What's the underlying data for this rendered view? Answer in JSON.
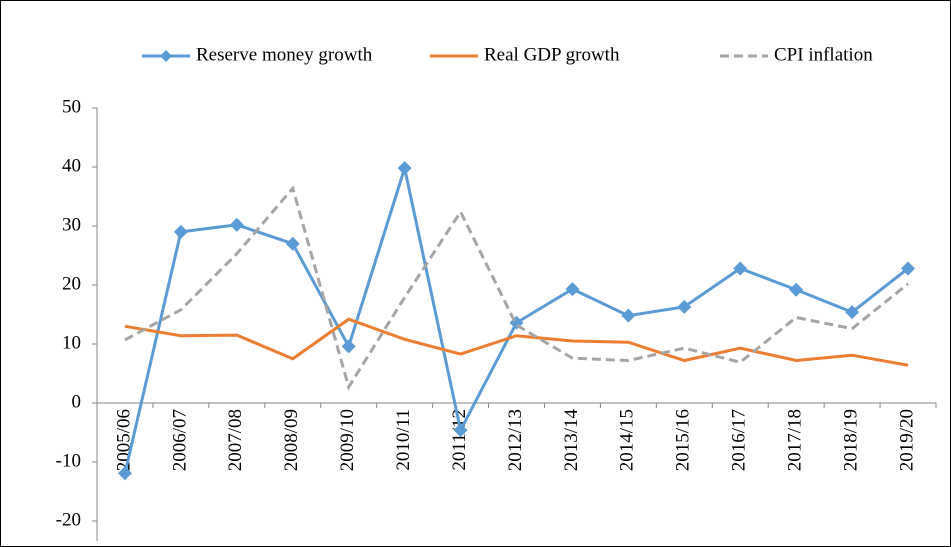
{
  "chart_data": {
    "type": "line",
    "categories": [
      "2005/06",
      "2006/07",
      "2007/08",
      "2008/09",
      "2009/10",
      "2010/11",
      "2011/12",
      "2012/13",
      "2013/14",
      "2014/15",
      "2015/16",
      "2016/17",
      "2017/18",
      "2018/19",
      "2019/20"
    ],
    "series": [
      {
        "name": "Reserve money growth",
        "color": "#5b9bd5",
        "marker": "diamond",
        "dash": false,
        "values": [
          -11.9,
          29,
          30.2,
          27,
          9.6,
          39.8,
          -4.6,
          13.6,
          19.3,
          14.8,
          16.3,
          22.8,
          19.2,
          15.4,
          22.8
        ]
      },
      {
        "name": "Real GDP growth",
        "color": "#ed7d31",
        "marker": "none",
        "dash": false,
        "values": [
          13,
          11.4,
          11.5,
          7.5,
          14.2,
          10.8,
          8.3,
          11.4,
          10.5,
          10.3,
          7.2,
          9.3,
          7.2,
          8.1,
          6.4
        ]
      },
      {
        "name": "CPI inflation",
        "color": "#a5a5a5",
        "marker": "none",
        "dash": true,
        "values": [
          10.7,
          15.8,
          25.3,
          36.4,
          2.7,
          17.9,
          32.4,
          13.2,
          7.6,
          7.2,
          9.3,
          6.9,
          14.5,
          12.6,
          20.2
        ]
      }
    ],
    "ylim": [
      -20,
      50
    ],
    "yticks": [
      -20,
      -10,
      0,
      10,
      20,
      30,
      40,
      50
    ],
    "grid": false,
    "legend": "top"
  }
}
